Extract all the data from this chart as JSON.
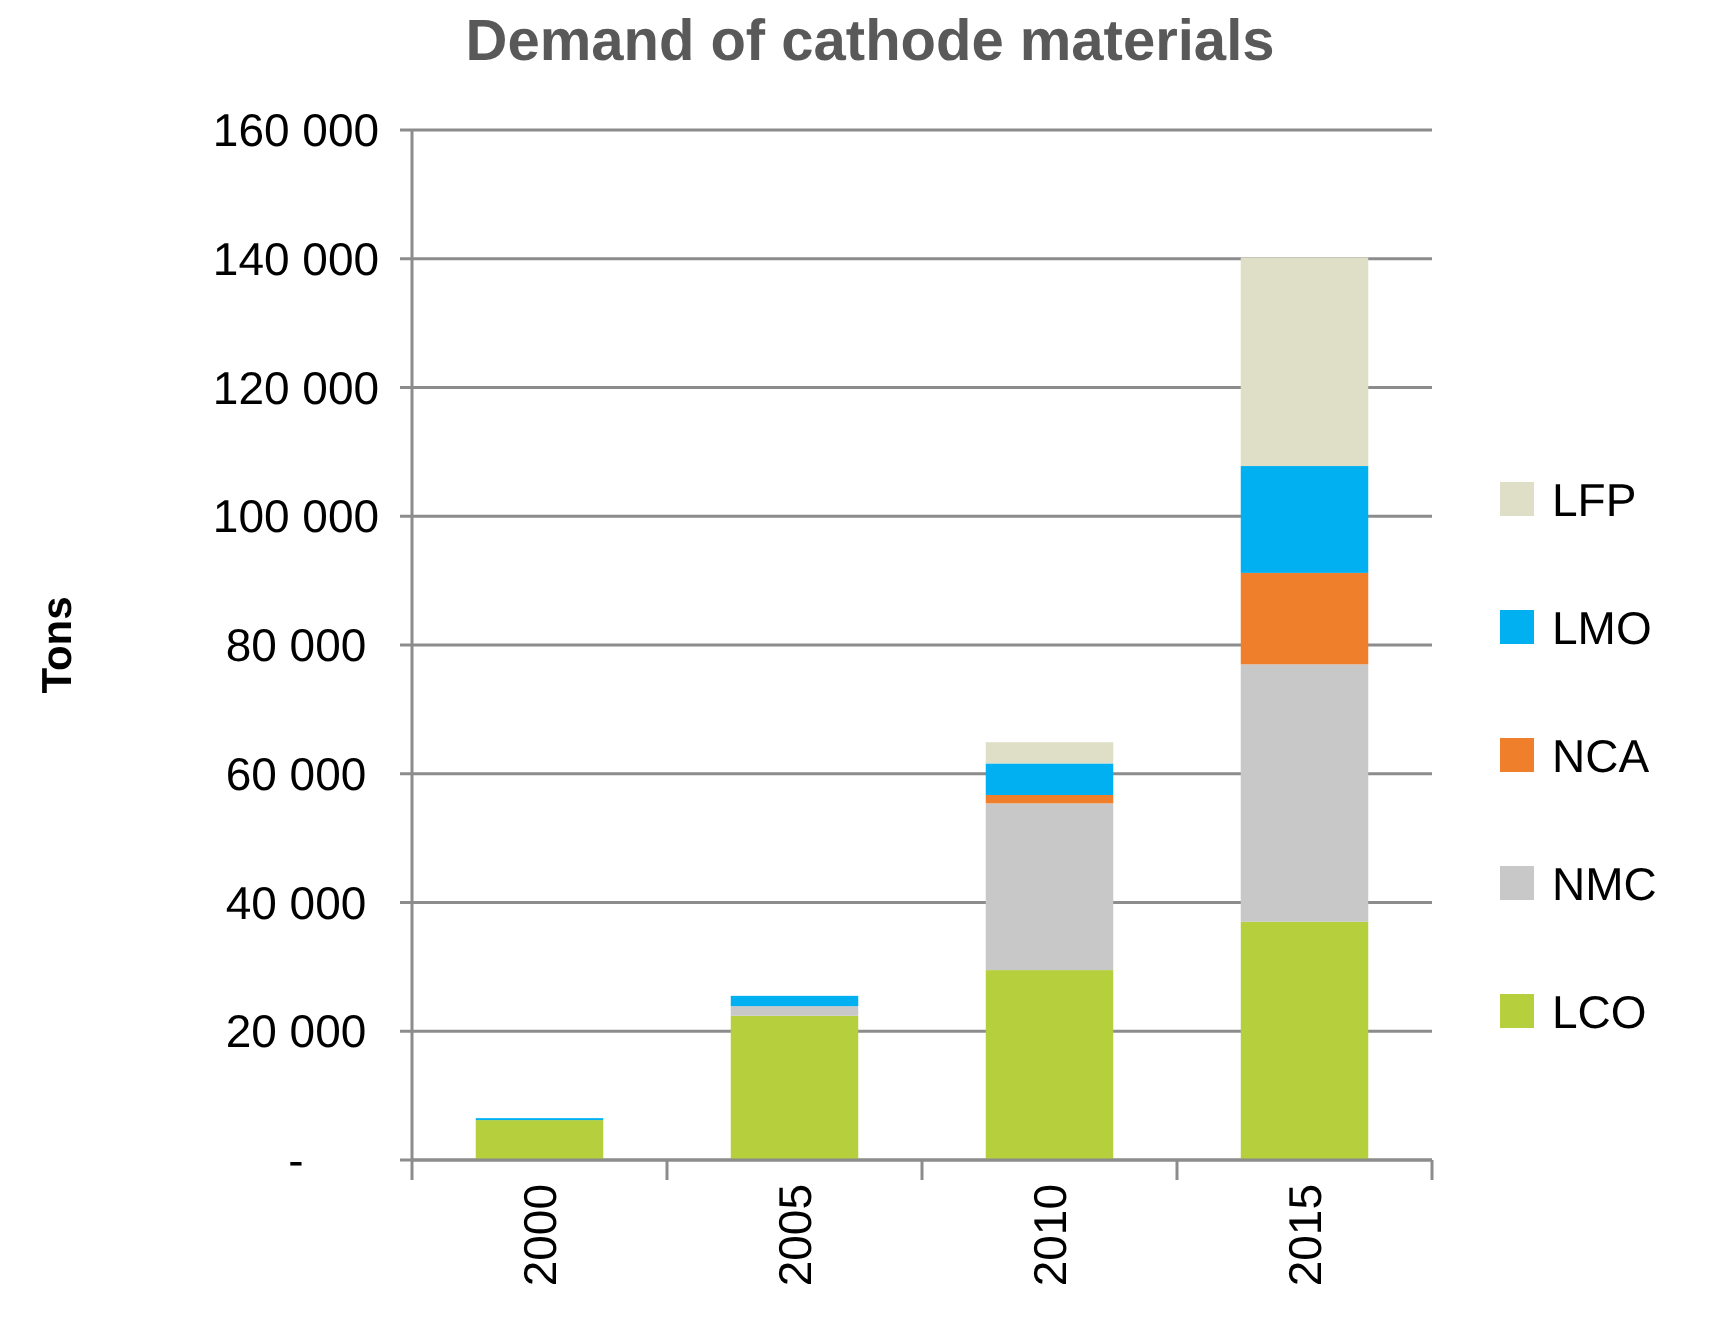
{
  "chart_data": {
    "type": "bar",
    "title": "Demand of cathode materials",
    "ylabel": "Tons",
    "categories": [
      "2000",
      "2005",
      "2010",
      "2015"
    ],
    "stacked": true,
    "grid": "y",
    "legend": "right",
    "ylim": [
      0,
      160000
    ],
    "yticks": [
      {
        "value": 0,
        "label": "-"
      },
      {
        "value": 20000,
        "label": "20 000"
      },
      {
        "value": 40000,
        "label": "40 000"
      },
      {
        "value": 60000,
        "label": "60 000"
      },
      {
        "value": 80000,
        "label": "80 000"
      },
      {
        "value": 100000,
        "label": "100 000"
      },
      {
        "value": 120000,
        "label": "120 000"
      },
      {
        "value": 140000,
        "label": "140 000"
      },
      {
        "value": 160000,
        "label": "160 000"
      }
    ],
    "series": [
      {
        "name": "LCO",
        "color": "#b5cf3d",
        "values": [
          6200,
          22400,
          29500,
          37000
        ]
      },
      {
        "name": "NMC",
        "color": "#c8c8c8",
        "values": [
          0,
          1500,
          25900,
          40000
        ]
      },
      {
        "name": "NCA",
        "color": "#ef7f2a",
        "values": [
          0,
          0,
          1300,
          14200
        ]
      },
      {
        "name": "LMO",
        "color": "#00b0f0",
        "values": [
          300,
          1600,
          4900,
          16600
        ]
      },
      {
        "name": "LFP",
        "color": "#dfdfc8",
        "values": [
          0,
          0,
          3300,
          32400
        ]
      }
    ]
  }
}
